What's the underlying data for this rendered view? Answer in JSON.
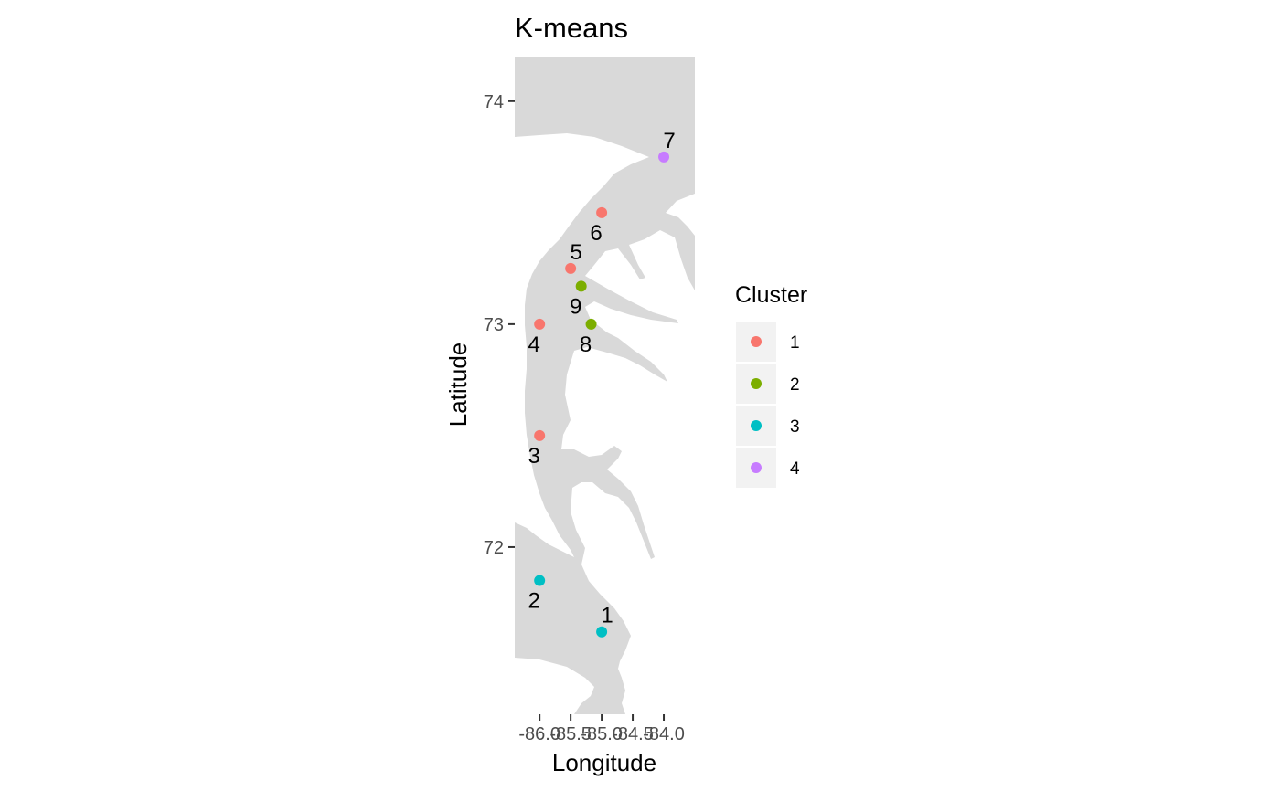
{
  "chart_data": {
    "type": "scatter",
    "title": "K-means",
    "xlabel": "Longitude",
    "ylabel": "Latitude",
    "xlim": [
      -86.4,
      -83.5
    ],
    "ylim": [
      71.25,
      74.2
    ],
    "x_ticks": [
      -86.0,
      -85.5,
      -85.0,
      -84.5,
      -84.0
    ],
    "x_tick_labels": [
      "-86.0",
      "-85.5",
      "-85.0",
      "-84.5",
      "-84.0"
    ],
    "y_ticks": [
      72,
      73,
      74
    ],
    "y_tick_labels": [
      "72",
      "73",
      "74"
    ],
    "grid": false,
    "background": "map",
    "legend": {
      "title": "Cluster",
      "position": "right"
    },
    "clusters": [
      {
        "name": "1",
        "color": "#F8766D"
      },
      {
        "name": "2",
        "color": "#7CAE00"
      },
      {
        "name": "3",
        "color": "#00BFC4"
      },
      {
        "name": "4",
        "color": "#C77CFF"
      }
    ],
    "points": [
      {
        "label": "1",
        "lon": -85.0,
        "lat": 71.62,
        "cluster": "3",
        "label_pos": "above"
      },
      {
        "label": "2",
        "lon": -86.0,
        "lat": 71.85,
        "cluster": "3",
        "label_pos": "below"
      },
      {
        "label": "3",
        "lon": -86.0,
        "lat": 72.5,
        "cluster": "1",
        "label_pos": "below"
      },
      {
        "label": "4",
        "lon": -86.0,
        "lat": 73.0,
        "cluster": "1",
        "label_pos": "below"
      },
      {
        "label": "5",
        "lon": -85.5,
        "lat": 73.25,
        "cluster": "1",
        "label_pos": "above"
      },
      {
        "label": "6",
        "lon": -85.0,
        "lat": 73.5,
        "cluster": "1",
        "label_pos": "below"
      },
      {
        "label": "7",
        "lon": -84.0,
        "lat": 73.75,
        "cluster": "4",
        "label_pos": "above"
      },
      {
        "label": "8",
        "lon": -85.17,
        "lat": 73.0,
        "cluster": "2",
        "label_pos": "below"
      },
      {
        "label": "9",
        "lon": -85.33,
        "lat": 73.17,
        "cluster": "2",
        "label_pos": "below"
      }
    ]
  }
}
